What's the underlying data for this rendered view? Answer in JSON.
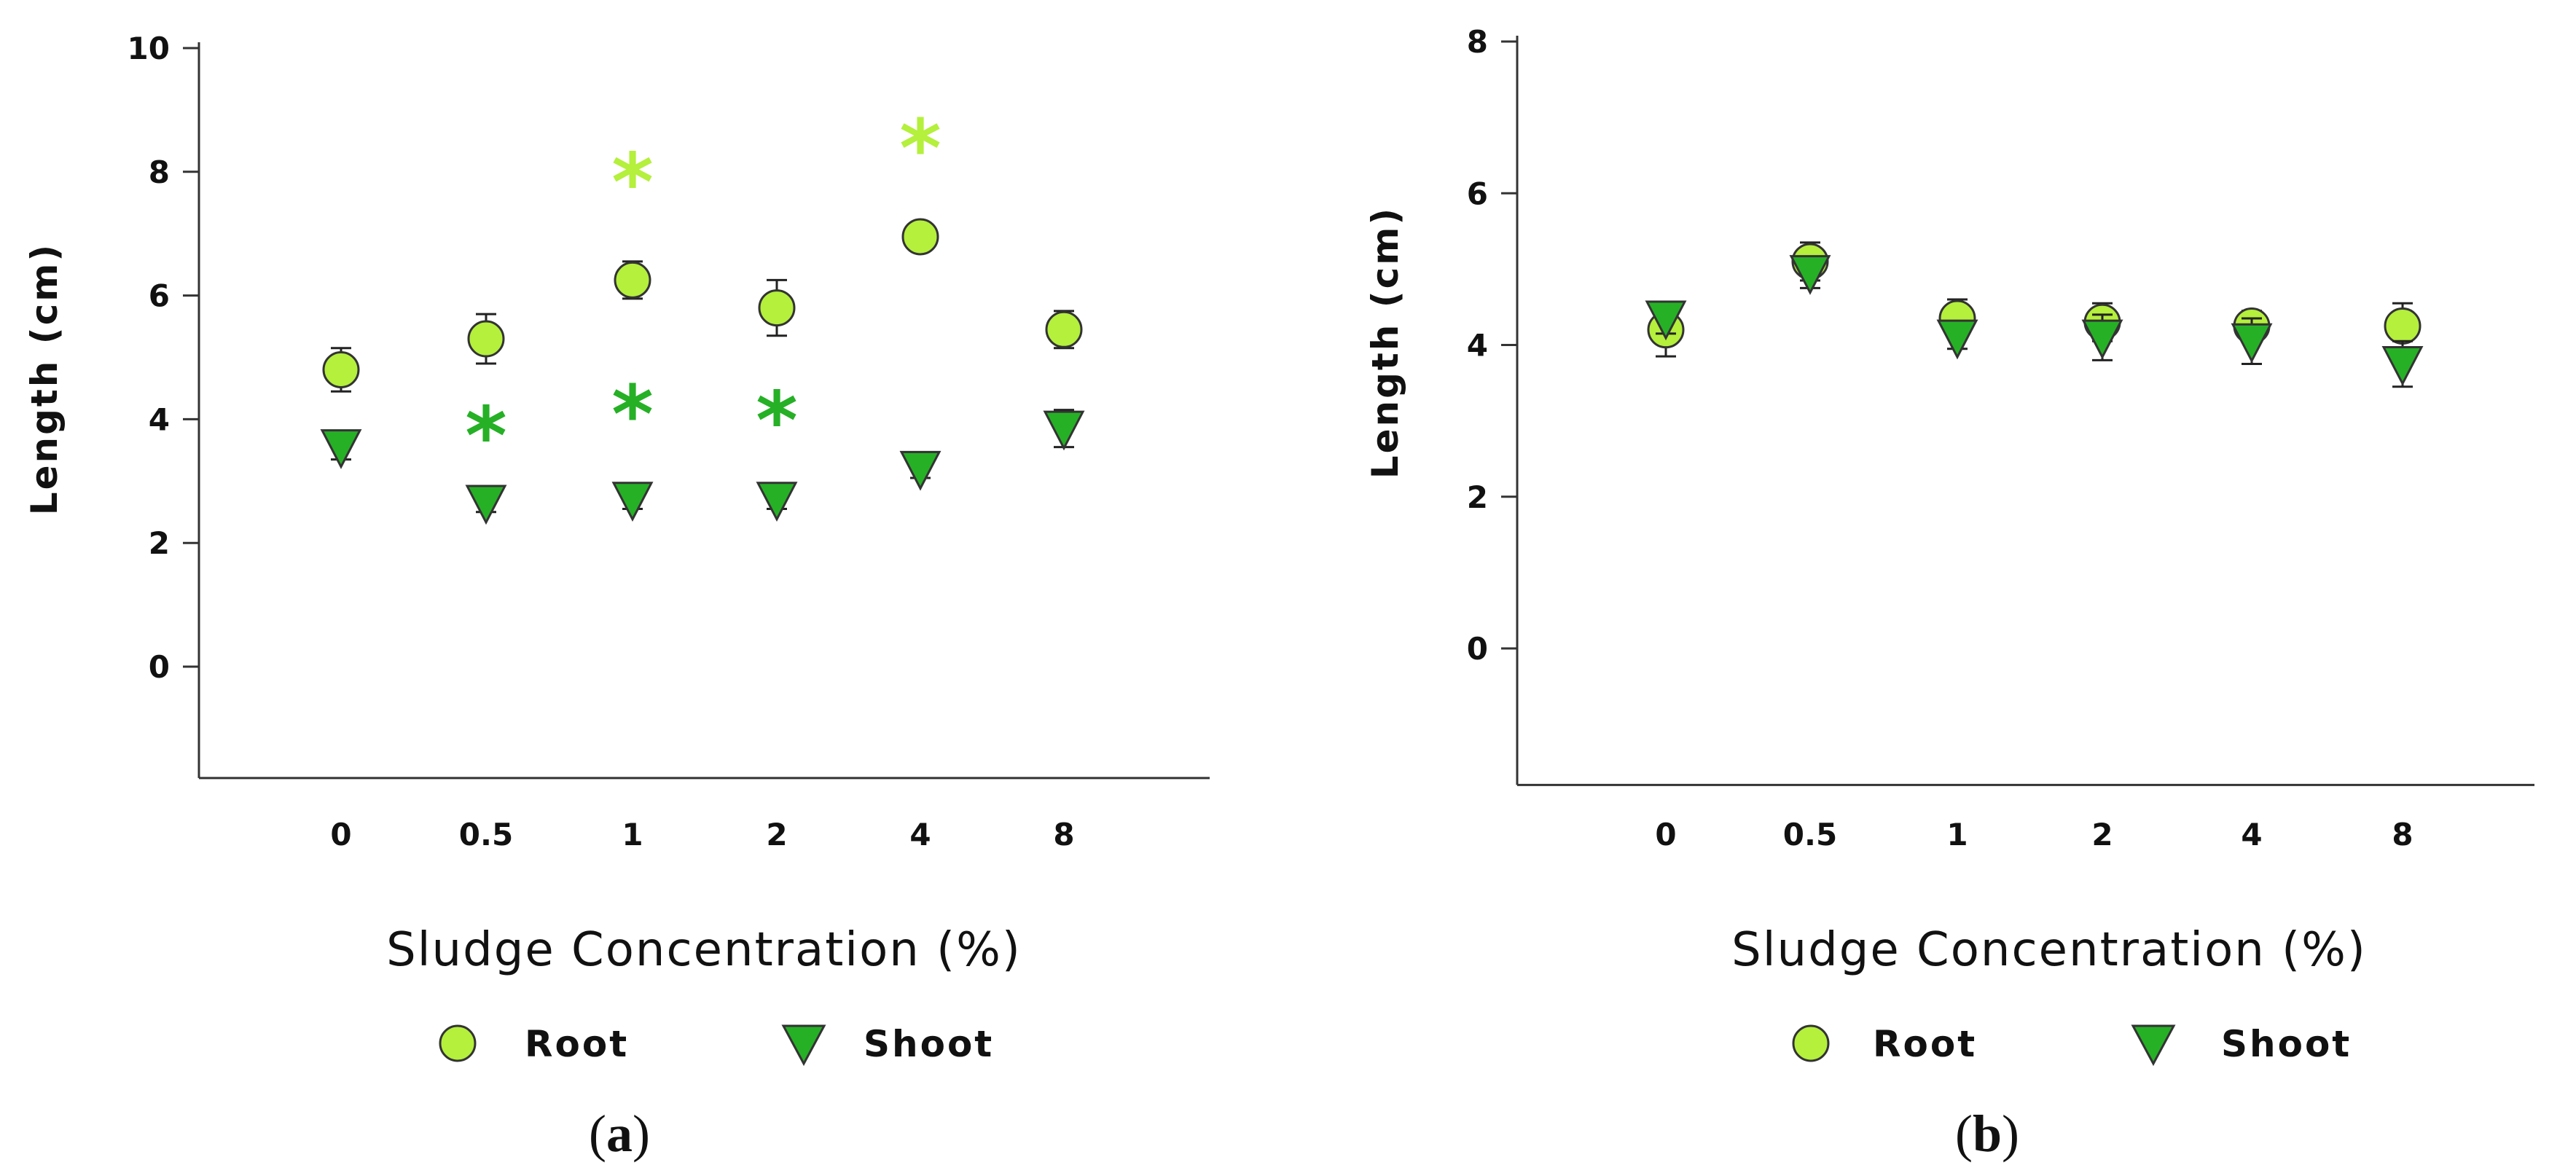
{
  "chart_data": [
    {
      "type": "scatter",
      "panel_label": "a",
      "xlabel": "Sludge Concentration (%)",
      "ylabel": "Length (cm)",
      "ylim": [
        -1.8,
        10
      ],
      "yticks": [
        "0",
        "2",
        "4",
        "6",
        "8",
        "10"
      ],
      "categories": [
        "0",
        "0.5",
        "1",
        "2",
        "4",
        "8"
      ],
      "series": [
        {
          "name": "Root",
          "marker": "circle",
          "color": "#b4f03c",
          "values": [
            4.8,
            5.3,
            6.25,
            5.8,
            6.95,
            5.45
          ],
          "errors": [
            0.35,
            0.4,
            0.3,
            0.45,
            0.15,
            0.3
          ],
          "significance": [
            null,
            null,
            "*",
            null,
            "*",
            null
          ],
          "star_y": [
            null,
            null,
            7.85,
            null,
            8.4,
            null
          ],
          "star_color": "#b4f03c"
        },
        {
          "name": "Shoot",
          "marker": "triangle",
          "color": "#26b026",
          "values": [
            3.55,
            2.65,
            2.7,
            2.7,
            3.2,
            3.85
          ],
          "errors": [
            0.2,
            0.15,
            0.15,
            0.15,
            0.15,
            0.3
          ],
          "significance": [
            null,
            "*",
            "*",
            "*",
            null,
            null
          ],
          "star_y": [
            null,
            3.75,
            4.1,
            4.0,
            null,
            null
          ],
          "star_color": "#26b026"
        }
      ],
      "legend": [
        "Root",
        "Shoot"
      ]
    },
    {
      "type": "scatter",
      "panel_label": "b",
      "xlabel": "Sludge Concentration (%)",
      "ylabel": "Length (cm)",
      "ylim": [
        -1.8,
        8
      ],
      "yticks": [
        "0",
        "2",
        "4",
        "6",
        "8"
      ],
      "categories": [
        "0",
        "0.5",
        "1",
        "2",
        "4",
        "8"
      ],
      "series": [
        {
          "name": "Root",
          "marker": "circle",
          "color": "#b4f03c",
          "values": [
            4.2,
            5.1,
            4.35,
            4.3,
            4.25,
            4.25
          ],
          "errors": [
            0.35,
            0.25,
            0.25,
            0.25,
            0.2,
            0.3
          ],
          "significance": [
            null,
            null,
            null,
            null,
            null,
            null
          ],
          "star_y": [
            null,
            null,
            null,
            null,
            null,
            null
          ],
          "star_color": "#b4f03c"
        },
        {
          "name": "Shoot",
          "marker": "triangle",
          "color": "#26b026",
          "values": [
            4.35,
            4.95,
            4.1,
            4.1,
            4.05,
            3.75
          ],
          "errors": [
            0.2,
            0.2,
            0.15,
            0.3,
            0.3,
            0.3
          ],
          "significance": [
            null,
            null,
            null,
            null,
            null,
            null
          ],
          "star_y": [
            null,
            null,
            null,
            null,
            null,
            null
          ],
          "star_color": "#26b026"
        }
      ],
      "legend": [
        "Root",
        "Shoot"
      ]
    }
  ]
}
